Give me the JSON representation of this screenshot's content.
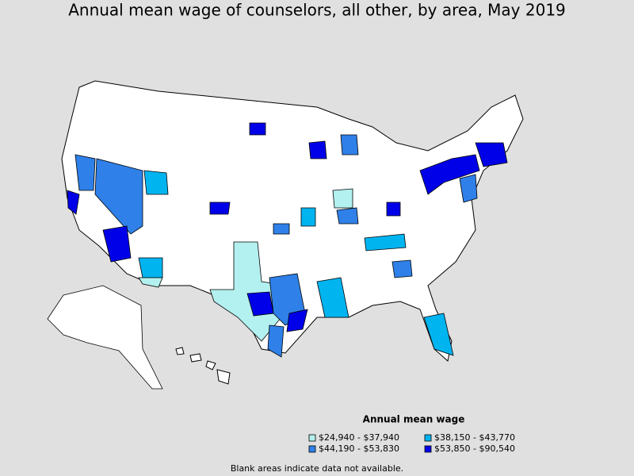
{
  "header": {
    "title": "Annual mean wage of counselors, all other, by area, May 2019"
  },
  "legend": {
    "title": "Annual mean wage",
    "items": [
      {
        "label": "$24,940 - $37,940",
        "color": "#b3f0f0"
      },
      {
        "label": "$38,150 - $43,770",
        "color": "#00b4f0"
      },
      {
        "label": "$44,190 - $53,830",
        "color": "#2f80e8"
      },
      {
        "label": "$53,850 - $90,540",
        "color": "#0000e8"
      }
    ]
  },
  "note": "Blank areas indicate data not available."
}
